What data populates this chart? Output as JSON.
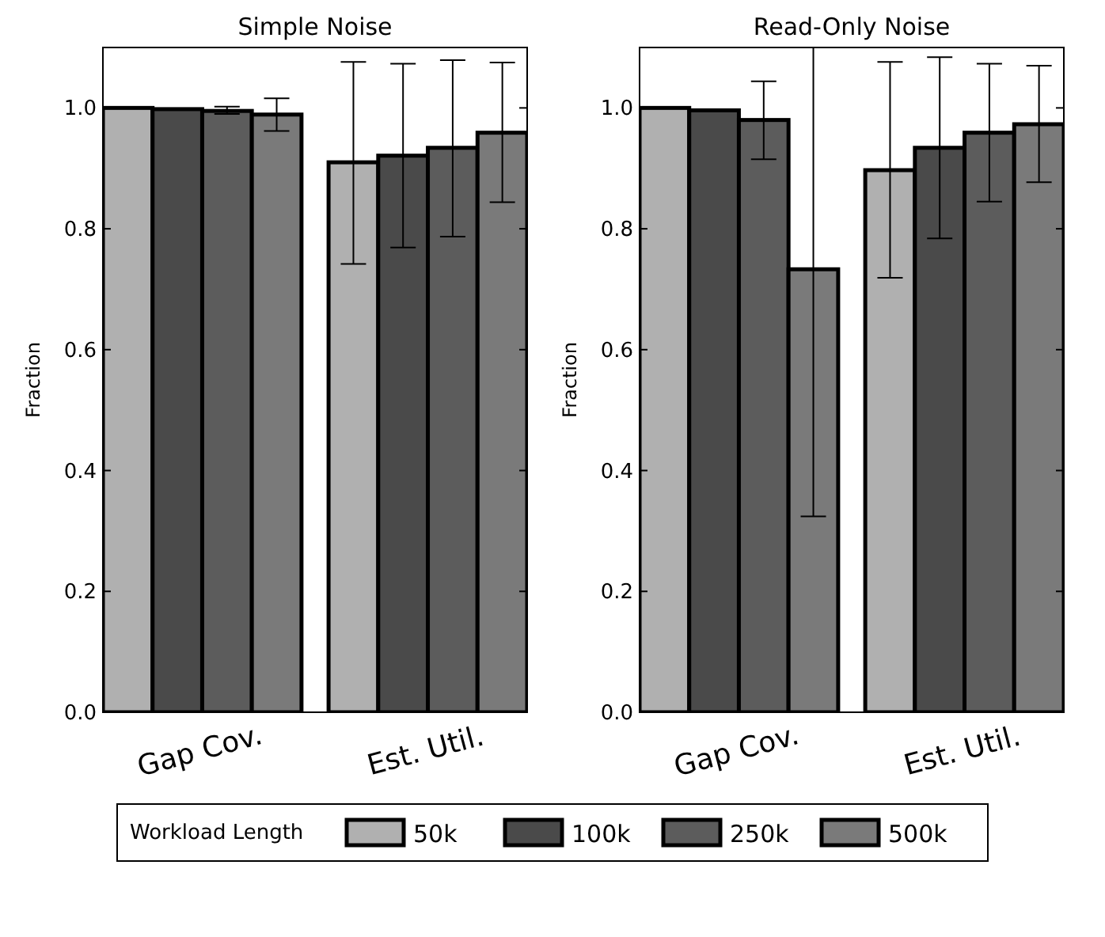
{
  "chart_data": [
    {
      "type": "bar",
      "title": "Simple Noise",
      "ylabel": "Fraction",
      "categories": [
        "Gap Cov.",
        "Est. Util."
      ],
      "ylim": [
        0,
        1.1
      ],
      "yticks": [
        {
          "value": 0,
          "label": "0.0"
        },
        {
          "value": 0.2,
          "label": "0.2"
        },
        {
          "value": 0.4,
          "label": "0.4"
        },
        {
          "value": 0.6,
          "label": "0.6"
        },
        {
          "value": 0.8,
          "label": "0.8"
        },
        {
          "value": 1,
          "label": "1.0"
        }
      ],
      "legend": "bottom",
      "legend_title": "Workload Length",
      "series": [
        {
          "name": "50k",
          "color": "#b0b0b0",
          "values": [
            1.0,
            0.91
          ],
          "errors": [
            null,
            [
              0.742,
              1.076
            ]
          ]
        },
        {
          "name": "100k",
          "color": "#4a4a4a",
          "values": [
            0.998,
            0.921
          ],
          "errors": [
            null,
            [
              0.769,
              1.073
            ]
          ]
        },
        {
          "name": "250k",
          "color": "#5c5c5c",
          "values": [
            0.995,
            0.934
          ],
          "errors": [
            [
              0.99,
              1.002
            ],
            [
              0.787,
              1.079
            ]
          ]
        },
        {
          "name": "500k",
          "color": "#7a7a7a",
          "values": [
            0.989,
            0.959
          ],
          "errors": [
            [
              0.962,
              1.016
            ],
            [
              0.844,
              1.075
            ]
          ]
        }
      ]
    },
    {
      "type": "bar",
      "title": "Read-Only Noise",
      "ylabel": "Fraction",
      "categories": [
        "Gap Cov.",
        "Est. Util."
      ],
      "ylim": [
        0,
        1.1
      ],
      "yticks": [
        {
          "value": 0,
          "label": "0.0"
        },
        {
          "value": 0.2,
          "label": "0.2"
        },
        {
          "value": 0.4,
          "label": "0.4"
        },
        {
          "value": 0.6,
          "label": "0.6"
        },
        {
          "value": 0.8,
          "label": "0.8"
        },
        {
          "value": 1,
          "label": "1.0"
        }
      ],
      "series": [
        {
          "name": "50k",
          "color": "#b0b0b0",
          "values": [
            1.0,
            0.897
          ],
          "errors": [
            null,
            [
              0.719,
              1.076
            ]
          ]
        },
        {
          "name": "100k",
          "color": "#4a4a4a",
          "values": [
            0.996,
            0.934
          ],
          "errors": [
            null,
            [
              0.784,
              1.084
            ]
          ]
        },
        {
          "name": "250k",
          "color": "#5c5c5c",
          "values": [
            0.98,
            0.959
          ],
          "errors": [
            [
              0.915,
              1.044
            ],
            [
              0.845,
              1.073
            ]
          ]
        },
        {
          "name": "500k",
          "color": "#7a7a7a",
          "values": [
            0.733,
            0.973
          ],
          "errors": [
            [
              0.324,
              1.1
            ],
            [
              0.877,
              1.07
            ]
          ]
        }
      ]
    }
  ]
}
